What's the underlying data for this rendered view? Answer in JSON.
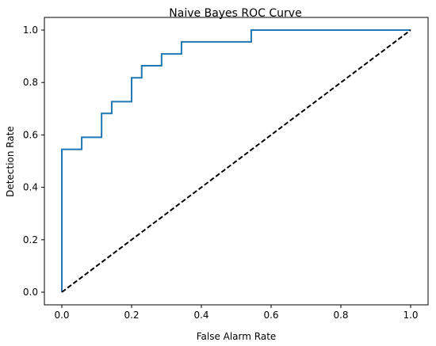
{
  "chart_data": {
    "type": "line",
    "title": "Naive Bayes ROC Curve",
    "xlabel": "False Alarm Rate",
    "ylabel": "Detection Rate",
    "xlim": [
      0.0,
      1.0
    ],
    "ylim": [
      0.0,
      1.0
    ],
    "x_ticks": [
      "0.0",
      "0.2",
      "0.4",
      "0.6",
      "0.8",
      "1.0"
    ],
    "y_ticks": [
      "0.0",
      "0.2",
      "0.4",
      "0.6",
      "0.8",
      "1.0"
    ],
    "grid": false,
    "series": [
      {
        "color": "#1f77b4",
        "style": "solid",
        "x": [
          0.0,
          0.0,
          0.057,
          0.057,
          0.114,
          0.114,
          0.143,
          0.143,
          0.2,
          0.2,
          0.229,
          0.229,
          0.286,
          0.286,
          0.343,
          0.343,
          0.543,
          0.543,
          1.0
        ],
        "y": [
          0.0,
          0.545,
          0.545,
          0.591,
          0.591,
          0.682,
          0.682,
          0.727,
          0.727,
          0.818,
          0.818,
          0.864,
          0.864,
          0.909,
          0.909,
          0.955,
          0.955,
          1.0,
          1.0
        ]
      },
      {
        "color": "#000000",
        "style": "dashed",
        "x": [
          0.0,
          1.0
        ],
        "y": [
          0.0,
          1.0
        ]
      }
    ]
  }
}
